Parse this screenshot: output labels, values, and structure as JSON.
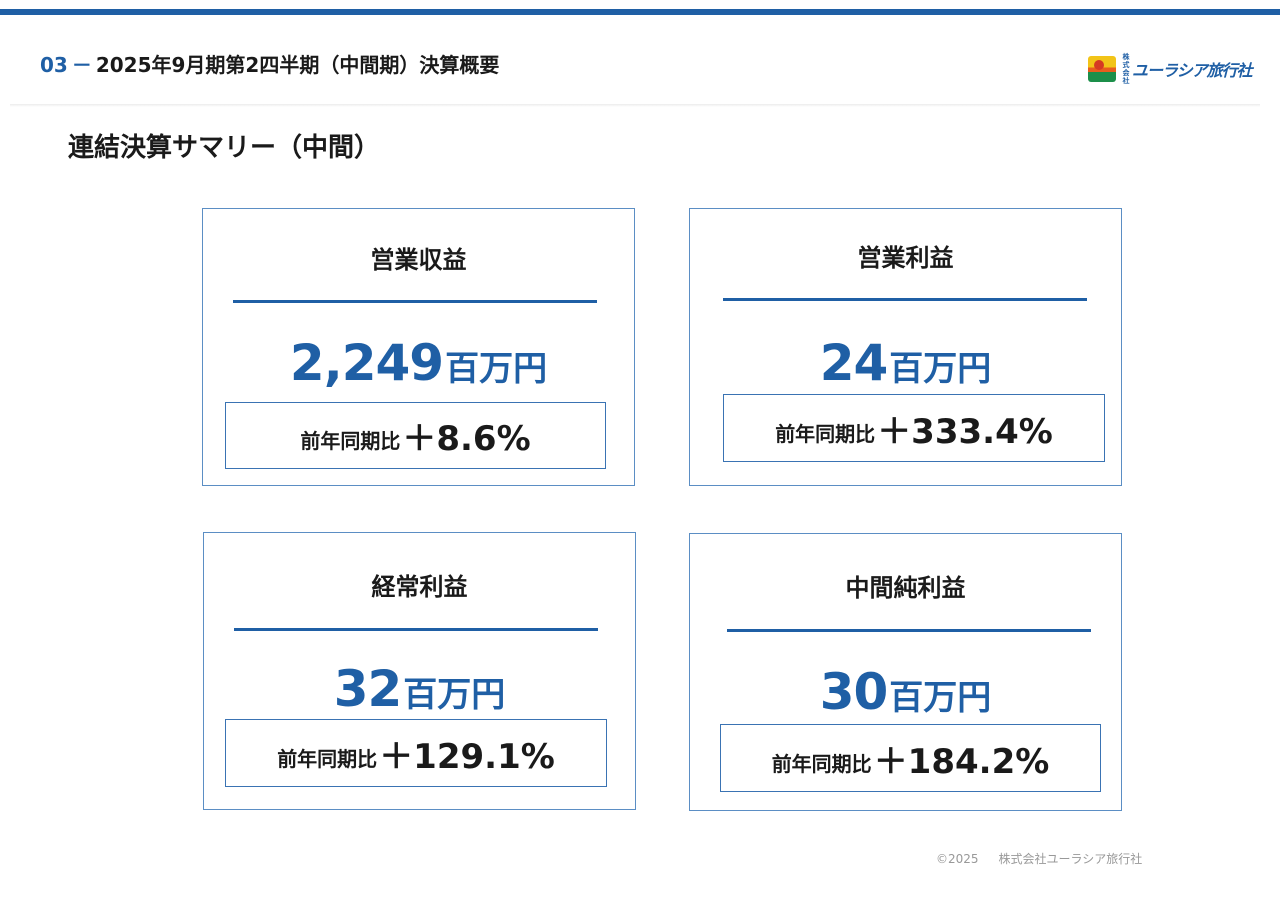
{
  "header": {
    "section_number": "03",
    "dash": "－",
    "title": "2025年9月期第2四半期（中間期）決算概要",
    "logo_small_text": "株式会社",
    "logo_name": "ユーラシア旅行社"
  },
  "section_title": "連結決算サマリー（中間）",
  "cards": [
    {
      "label": "営業収益",
      "value": "2,249",
      "unit": "百万円",
      "yoy_label": "前年同期比",
      "yoy_value": "＋8.6%"
    },
    {
      "label": "営業利益",
      "value": "24",
      "unit": "百万円",
      "yoy_label": "前年同期比",
      "yoy_value": "＋333.4%"
    },
    {
      "label": "経常利益",
      "value": "32",
      "unit": "百万円",
      "yoy_label": "前年同期比",
      "yoy_value": "＋129.1%"
    },
    {
      "label": "中間純利益",
      "value": "30",
      "unit": "百万円",
      "yoy_label": "前年同期比",
      "yoy_value": "＋184.2%"
    }
  ],
  "footer": {
    "copyright": "©2025",
    "company": "株式会社ユーラシア旅行社"
  },
  "colors": {
    "accent": "#1f5fa5",
    "card_border": "#5b8ec4"
  }
}
